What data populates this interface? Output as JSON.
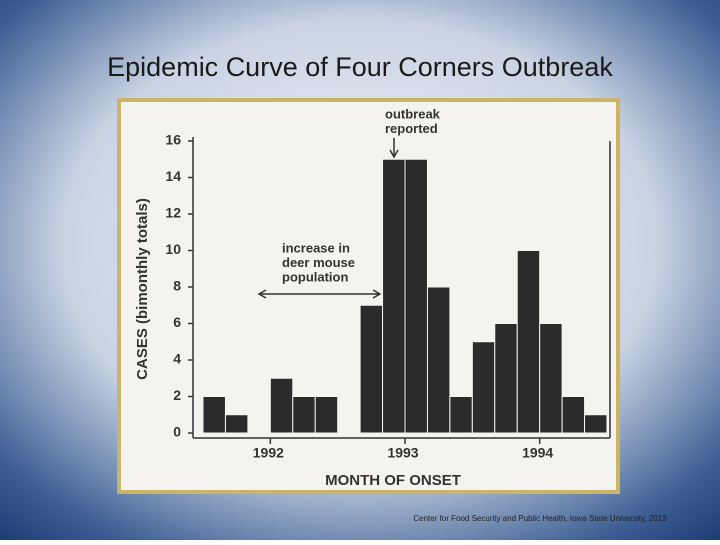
{
  "slide_title": "Epidemic Curve of Four Corners Outbreak",
  "footer": "Center for Food Security and Public Health, Iowa State University, 2013",
  "chart_data": {
    "type": "bar",
    "ylabel": "CASES (bimonthly totals)",
    "xlabel": "MONTH OF ONSET",
    "categories": [
      null,
      null,
      null,
      "1992",
      null,
      null,
      null,
      null,
      null,
      "1993",
      null,
      null,
      null,
      null,
      null,
      "1994",
      null,
      null
    ],
    "values": [
      2,
      1,
      0,
      3,
      2,
      2,
      0,
      7,
      15,
      15,
      8,
      2,
      5,
      6,
      10,
      6,
      2,
      1
    ],
    "color": "#2b2b2b",
    "ylim": [
      0,
      16
    ],
    "yticks": [
      0,
      2,
      4,
      6,
      8,
      10,
      12,
      14,
      16
    ],
    "annotations": [
      [
        "outbreak",
        "reported"
      ],
      [
        "increase in",
        "deer mouse",
        "population"
      ]
    ]
  }
}
